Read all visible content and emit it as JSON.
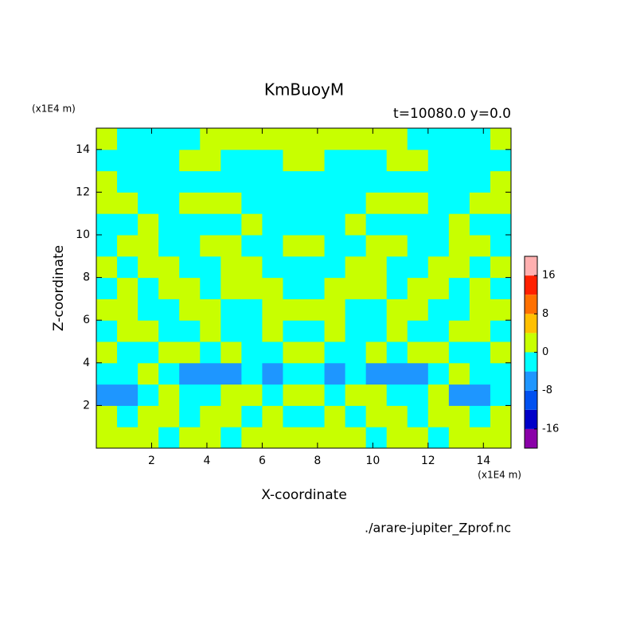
{
  "chart_data": {
    "type": "contour",
    "title": "KmBuoyM",
    "subtitle": "t=10080.0 y=0.0",
    "x_label": "X-coordinate",
    "y_label": "Z-coordinate",
    "x_unit": "(x1E4 m)",
    "y_unit": "(x1E4 m)",
    "source": "./arare-jupiter_Zprof.nc",
    "xlim": [
      0,
      15
    ],
    "ylim": [
      0,
      15
    ],
    "xticks": [
      2,
      4,
      6,
      8,
      10,
      12,
      14
    ],
    "yticks": [
      2,
      4,
      6,
      8,
      10,
      12,
      14
    ],
    "levels": [
      -20,
      -16,
      -12,
      -8,
      -4,
      0,
      4,
      8,
      12,
      16,
      20
    ],
    "colors": [
      "#8a00a8",
      "#0000c8",
      "#0050f0",
      "#1e96ff",
      "#00ffff",
      "#c8ff00",
      "#ffc000",
      "#ff7000",
      "#ff2000",
      "#ffb0b0"
    ],
    "colorbar_ticks": [
      -16,
      -8,
      0,
      8,
      16
    ],
    "z": [
      [
        2,
        2,
        2,
        -2,
        2,
        2,
        -2,
        2,
        2,
        2,
        2,
        2,
        2,
        -2,
        2,
        2,
        -2,
        2,
        2,
        2
      ],
      [
        2,
        -2,
        2,
        2,
        -2,
        2,
        2,
        -2,
        2,
        -2,
        -2,
        2,
        -2,
        2,
        2,
        -2,
        2,
        2,
        -2,
        2
      ],
      [
        -6,
        -6,
        -2,
        2,
        -2,
        -2,
        2,
        2,
        -2,
        2,
        2,
        -2,
        2,
        2,
        -2,
        -2,
        2,
        -6,
        -6,
        -2
      ],
      [
        -2,
        -2,
        2,
        -2,
        -6,
        -6,
        -6,
        -2,
        -6,
        -2,
        -2,
        -6,
        -2,
        -6,
        -6,
        -6,
        -2,
        2,
        -2,
        -2
      ],
      [
        2,
        -2,
        -2,
        2,
        2,
        -2,
        2,
        -2,
        -2,
        2,
        2,
        -2,
        -2,
        2,
        -2,
        2,
        2,
        -2,
        -2,
        2
      ],
      [
        -2,
        2,
        2,
        -2,
        -2,
        2,
        -2,
        -2,
        2,
        -2,
        -2,
        2,
        -2,
        -2,
        2,
        -2,
        -2,
        2,
        2,
        -2
      ],
      [
        2,
        2,
        -2,
        -2,
        2,
        2,
        -2,
        -2,
        2,
        2,
        2,
        2,
        -2,
        -2,
        2,
        2,
        -2,
        -2,
        2,
        2
      ],
      [
        -2,
        2,
        -2,
        2,
        2,
        -2,
        2,
        2,
        2,
        -2,
        -2,
        2,
        2,
        2,
        -2,
        2,
        2,
        -2,
        2,
        -2
      ],
      [
        2,
        -2,
        2,
        2,
        -2,
        -2,
        2,
        2,
        -2,
        -2,
        -2,
        -2,
        2,
        2,
        -2,
        -2,
        2,
        2,
        -2,
        2
      ],
      [
        -2,
        2,
        2,
        -2,
        -2,
        2,
        2,
        -2,
        -2,
        2,
        2,
        -2,
        -2,
        2,
        2,
        -2,
        -2,
        2,
        2,
        -2
      ],
      [
        -2,
        -2,
        2,
        -2,
        -2,
        -2,
        -2,
        2,
        -2,
        -2,
        -2,
        -2,
        2,
        -2,
        -2,
        -2,
        -2,
        2,
        -2,
        -2
      ],
      [
        2,
        2,
        -2,
        -2,
        2,
        2,
        2,
        -2,
        -2,
        -2,
        -2,
        -2,
        -2,
        2,
        2,
        2,
        -2,
        -2,
        2,
        2
      ],
      [
        2,
        -2,
        -2,
        -2,
        -2,
        -2,
        -2,
        -2,
        -2,
        -2,
        -2,
        -2,
        -2,
        -2,
        -2,
        -2,
        -2,
        -2,
        -2,
        2
      ],
      [
        -2,
        -2,
        -2,
        -2,
        2,
        2,
        -2,
        -2,
        -2,
        2,
        2,
        -2,
        -2,
        -2,
        2,
        2,
        -2,
        -2,
        -2,
        -2
      ],
      [
        2,
        -2,
        -2,
        -2,
        -2,
        2,
        2,
        2,
        2,
        2,
        2,
        2,
        2,
        2,
        2,
        -2,
        -2,
        -2,
        -2,
        2
      ]
    ]
  }
}
